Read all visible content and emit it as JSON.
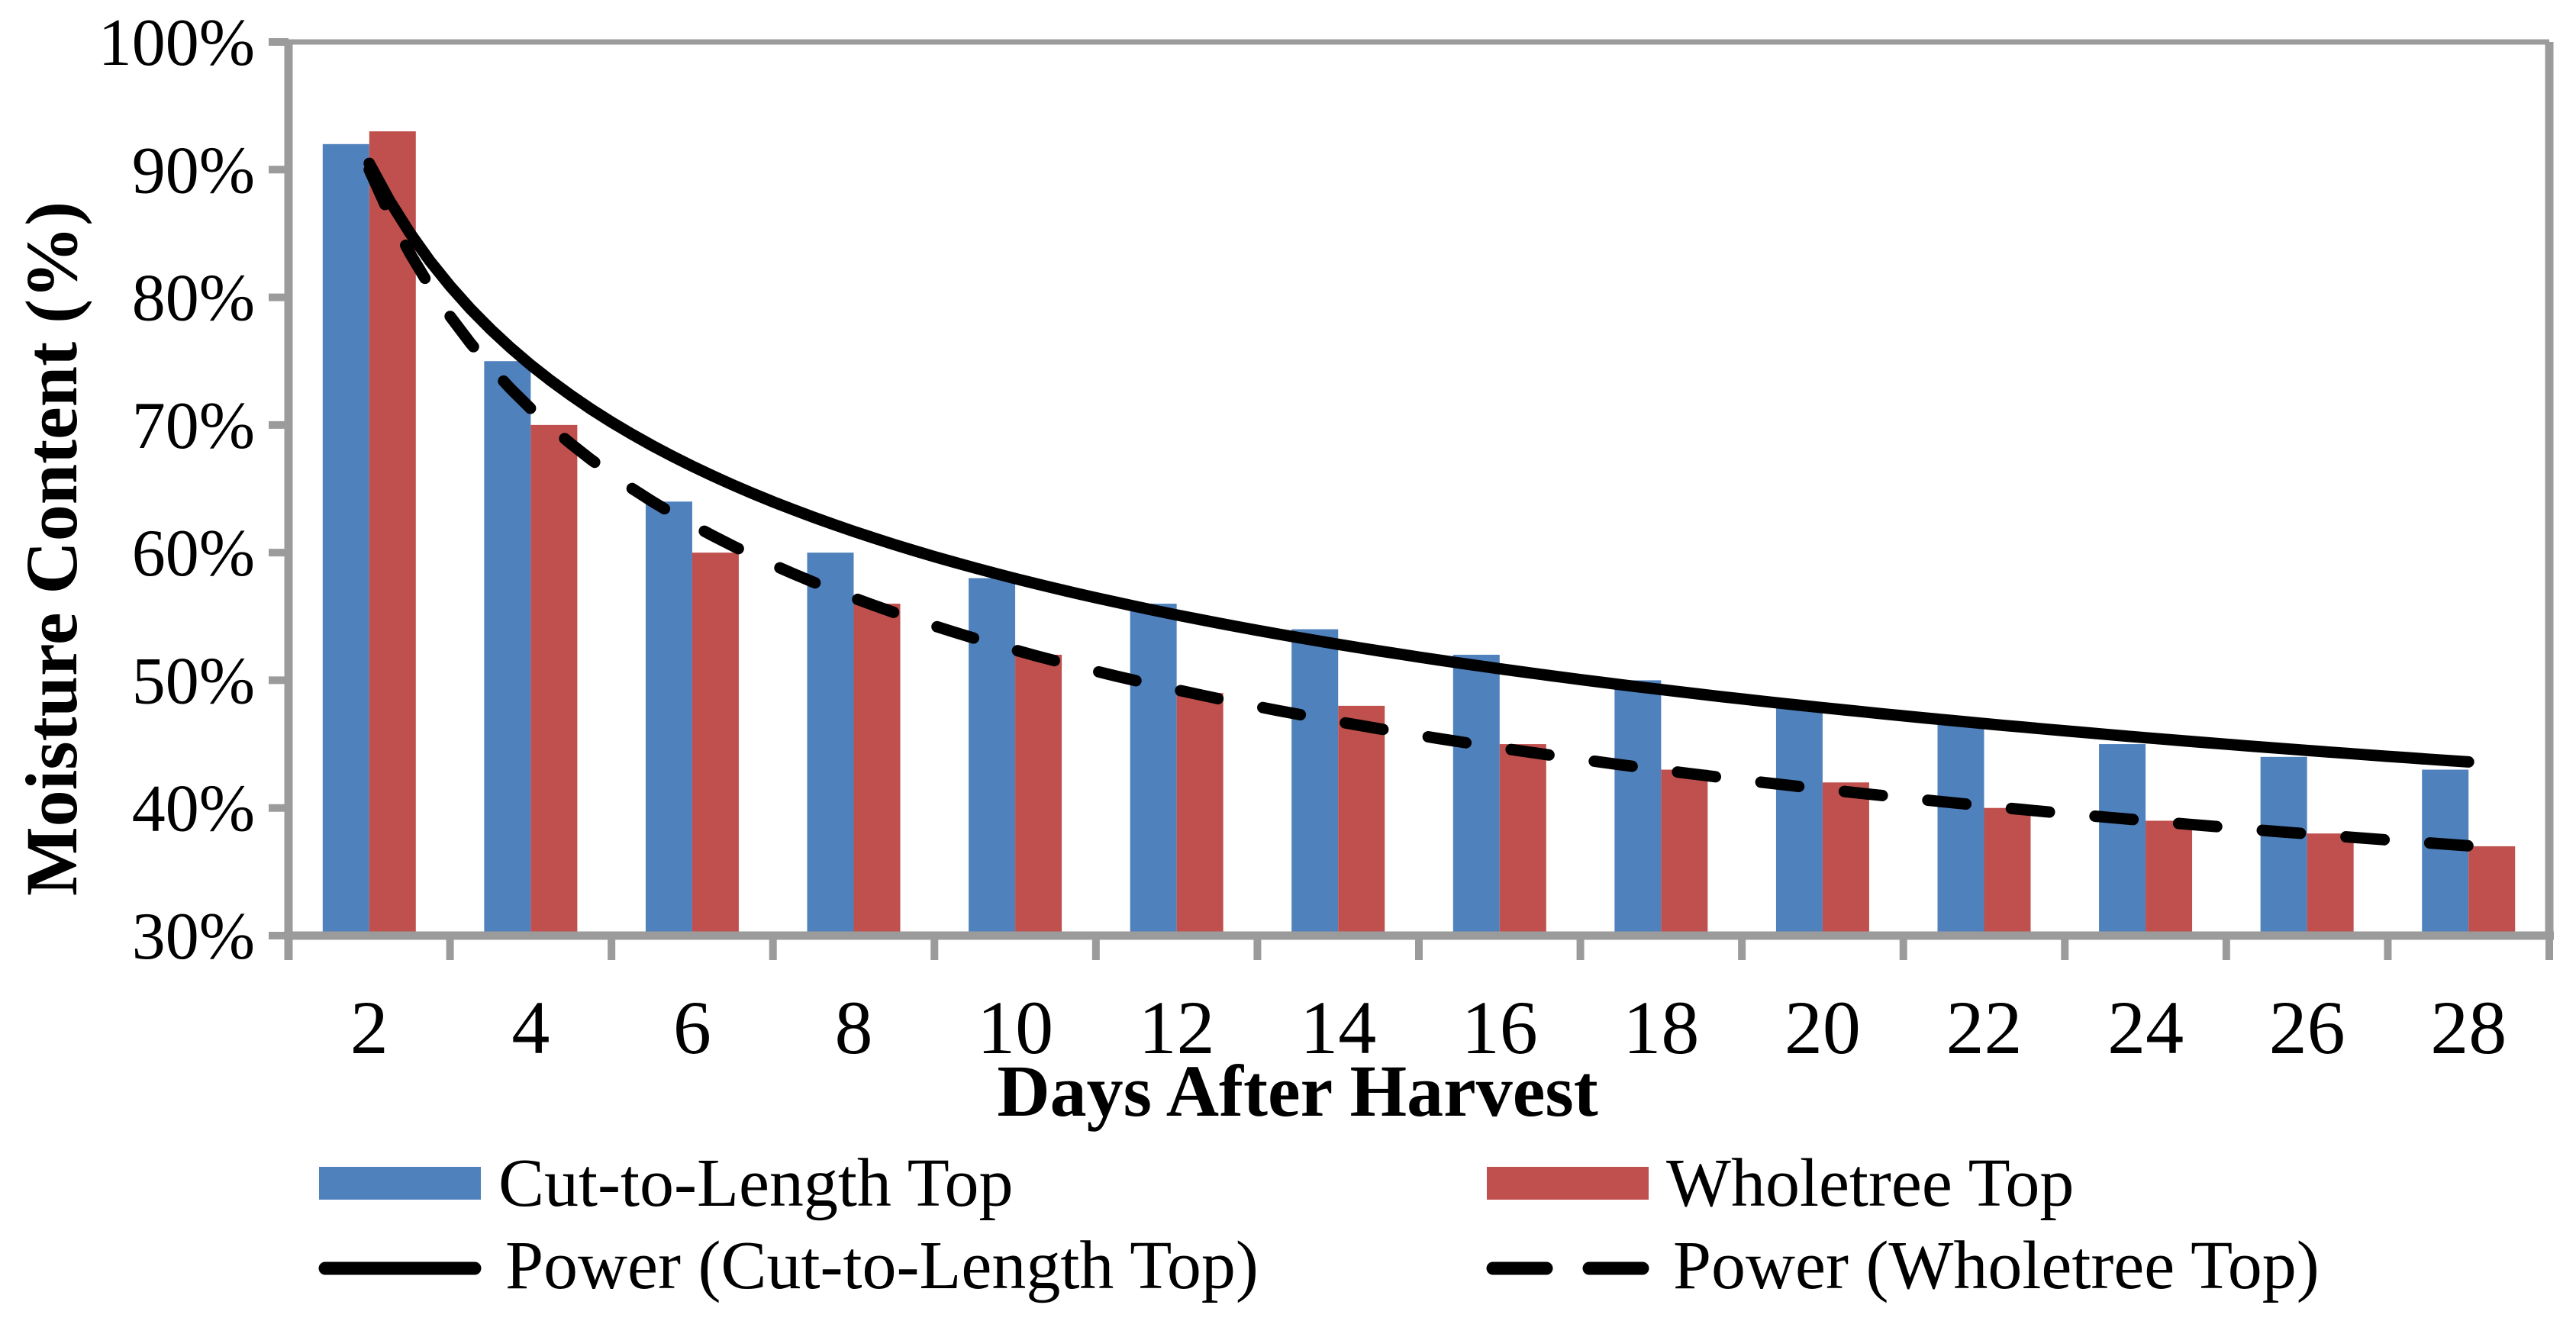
{
  "chart_data": {
    "type": "bar",
    "title": "",
    "xlabel": "Days After Harvest",
    "ylabel": "Moisture Content (%)",
    "categories": [
      2,
      4,
      6,
      8,
      10,
      12,
      14,
      16,
      18,
      20,
      22,
      24,
      26,
      28
    ],
    "x_tick_labels": [
      "2",
      "4",
      "6",
      "8",
      "10",
      "12",
      "14",
      "16",
      "18",
      "20",
      "22",
      "24",
      "26",
      "28"
    ],
    "series": [
      {
        "name": "Cut-to-Length Top",
        "color": "#4F81BD",
        "values": [
          92,
          75,
          64,
          60,
          58,
          56,
          54,
          52,
          50,
          48,
          47,
          45,
          44,
          43
        ]
      },
      {
        "name": "Wholetree Top",
        "color": "#C0504D",
        "values": [
          93,
          70,
          60,
          56,
          52,
          49,
          48,
          45,
          43,
          42,
          40,
          39,
          38,
          37
        ]
      }
    ],
    "trendlines": [
      {
        "label": "Power (Cut-to-Length Top)",
        "fit": "power",
        "series_index": 0,
        "line_style": "solid",
        "color": "#000000"
      },
      {
        "label": "Power (Wholetree Top)",
        "fit": "power",
        "series_index": 1,
        "line_style": "dashed",
        "color": "#000000"
      }
    ],
    "ylim": [
      30,
      100
    ],
    "ytick_step": 10,
    "y_tick_labels": [
      "30%",
      "40%",
      "50%",
      "60%",
      "70%",
      "80%",
      "90%",
      "100%"
    ],
    "ytick_format": "percent",
    "grid": false,
    "legend_position": "bottom",
    "axis_color": "#9B9B9B",
    "text_color": "#000000",
    "background_color": "#FFFFFF"
  },
  "legend": {
    "items": [
      {
        "label": "Cut-to-Length Top",
        "swatch": "rect",
        "color": "#4F81BD"
      },
      {
        "label": "Wholetree Top",
        "swatch": "rect",
        "color": "#C0504D"
      },
      {
        "label": "Power (Cut-to-Length Top)",
        "swatch": "solid-line",
        "color": "#000000"
      },
      {
        "label": "Power (Wholetree Top)",
        "swatch": "dashed-line",
        "color": "#000000"
      }
    ]
  }
}
